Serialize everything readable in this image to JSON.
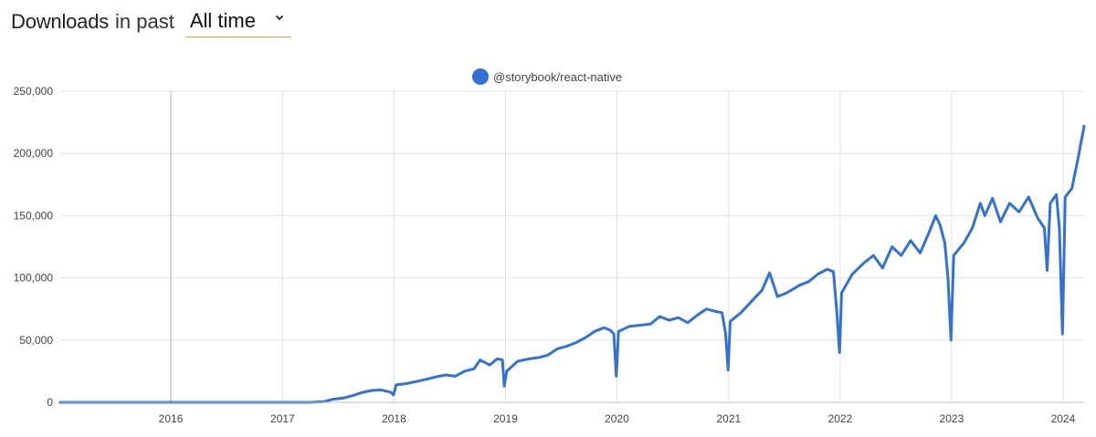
{
  "header": {
    "title": "Downloads",
    "subtitle": "in past",
    "range_value": "All time"
  },
  "colors": {
    "series": "#3371d2",
    "grid": "#e2e2e2",
    "highlight_line": "#bdbdbd",
    "select_underline": "#d3a53a"
  },
  "icons": {
    "dropdown": "chevron-down-icon",
    "legend_marker": "filled-circle-icon"
  },
  "chart_data": {
    "type": "line",
    "legend": [
      "@storybook/react-native"
    ],
    "legend_position": "top-center",
    "grid": true,
    "x_range": [
      "2015-01-04",
      "2024-03-10"
    ],
    "ylim": [
      0,
      250000
    ],
    "x_tick_labels": [
      "2016",
      "2017",
      "2018",
      "2019",
      "2020",
      "2021",
      "2022",
      "2023",
      "2024"
    ],
    "y_tick_labels": [
      "0",
      "50,000",
      "100,000",
      "150,000",
      "200,000",
      "250,000"
    ],
    "highlight_x": "2016-01-01",
    "series": [
      {
        "name": "@storybook/react-native",
        "points": [
          [
            "2015-01-04",
            0
          ],
          [
            "2016-01-01",
            0
          ],
          [
            "2017-01-01",
            0
          ],
          [
            "2017-04-01",
            0
          ],
          [
            "2017-05-15",
            500
          ],
          [
            "2017-06-15",
            2500
          ],
          [
            "2017-07-20",
            3500
          ],
          [
            "2017-08-20",
            5500
          ],
          [
            "2017-09-20",
            8000
          ],
          [
            "2017-10-20",
            9500
          ],
          [
            "2017-11-20",
            10000
          ],
          [
            "2017-12-22",
            8000
          ],
          [
            "2017-12-30",
            6000
          ],
          [
            "2018-01-08",
            14000
          ],
          [
            "2018-02-10",
            15000
          ],
          [
            "2018-03-20",
            17000
          ],
          [
            "2018-04-25",
            19000
          ],
          [
            "2018-05-20",
            20500
          ],
          [
            "2018-06-20",
            22000
          ],
          [
            "2018-07-20",
            21000
          ],
          [
            "2018-08-20",
            25000
          ],
          [
            "2018-09-20",
            27000
          ],
          [
            "2018-10-10",
            34000
          ],
          [
            "2018-11-10",
            30000
          ],
          [
            "2018-12-05",
            35000
          ],
          [
            "2018-12-22",
            34000
          ],
          [
            "2018-12-28",
            13000
          ],
          [
            "2019-01-05",
            25000
          ],
          [
            "2019-02-10",
            33000
          ],
          [
            "2019-03-20",
            35000
          ],
          [
            "2019-04-20",
            36000
          ],
          [
            "2019-05-20",
            38000
          ],
          [
            "2019-06-20",
            43000
          ],
          [
            "2019-07-20",
            45000
          ],
          [
            "2019-08-20",
            48000
          ],
          [
            "2019-09-20",
            52000
          ],
          [
            "2019-10-20",
            57000
          ],
          [
            "2019-11-20",
            60000
          ],
          [
            "2019-12-10",
            58000
          ],
          [
            "2019-12-22",
            55000
          ],
          [
            "2019-12-30",
            21000
          ],
          [
            "2020-01-06",
            57000
          ],
          [
            "2020-02-10",
            61000
          ],
          [
            "2020-03-20",
            62000
          ],
          [
            "2020-04-20",
            63000
          ],
          [
            "2020-05-20",
            69000
          ],
          [
            "2020-06-20",
            66000
          ],
          [
            "2020-07-20",
            68000
          ],
          [
            "2020-08-20",
            64000
          ],
          [
            "2020-09-20",
            70000
          ],
          [
            "2020-10-20",
            75000
          ],
          [
            "2020-11-20",
            73000
          ],
          [
            "2020-12-10",
            72000
          ],
          [
            "2020-12-22",
            55000
          ],
          [
            "2020-12-30",
            26000
          ],
          [
            "2021-01-06",
            65000
          ],
          [
            "2021-02-10",
            72000
          ],
          [
            "2021-03-20",
            82000
          ],
          [
            "2021-04-20",
            90000
          ],
          [
            "2021-05-15",
            104000
          ],
          [
            "2021-06-10",
            85000
          ],
          [
            "2021-07-10",
            88000
          ],
          [
            "2021-08-20",
            94000
          ],
          [
            "2021-09-20",
            97000
          ],
          [
            "2021-10-20",
            103000
          ],
          [
            "2021-11-20",
            107000
          ],
          [
            "2021-12-10",
            105000
          ],
          [
            "2021-12-22",
            70000
          ],
          [
            "2021-12-30",
            40000
          ],
          [
            "2022-01-06",
            88000
          ],
          [
            "2022-02-10",
            103000
          ],
          [
            "2022-03-20",
            112000
          ],
          [
            "2022-04-20",
            118000
          ],
          [
            "2022-05-20",
            108000
          ],
          [
            "2022-06-20",
            125000
          ],
          [
            "2022-07-20",
            118000
          ],
          [
            "2022-08-20",
            130000
          ],
          [
            "2022-09-20",
            120000
          ],
          [
            "2022-10-20",
            137000
          ],
          [
            "2022-11-10",
            150000
          ],
          [
            "2022-11-25",
            142000
          ],
          [
            "2022-12-10",
            128000
          ],
          [
            "2022-12-20",
            100000
          ],
          [
            "2022-12-30",
            50000
          ],
          [
            "2023-01-08",
            118000
          ],
          [
            "2023-02-10",
            128000
          ],
          [
            "2023-03-10",
            140000
          ],
          [
            "2023-04-05",
            160000
          ],
          [
            "2023-04-20",
            150000
          ],
          [
            "2023-05-15",
            164000
          ],
          [
            "2023-06-10",
            145000
          ],
          [
            "2023-07-10",
            160000
          ],
          [
            "2023-08-10",
            153000
          ],
          [
            "2023-09-10",
            165000
          ],
          [
            "2023-10-10",
            148000
          ],
          [
            "2023-11-01",
            140000
          ],
          [
            "2023-11-10",
            106000
          ],
          [
            "2023-11-20",
            160000
          ],
          [
            "2023-12-10",
            167000
          ],
          [
            "2023-12-20",
            140000
          ],
          [
            "2023-12-30",
            55000
          ],
          [
            "2024-01-08",
            165000
          ],
          [
            "2024-01-30",
            172000
          ],
          [
            "2024-02-20",
            197000
          ],
          [
            "2024-03-10",
            222000
          ]
        ]
      }
    ]
  }
}
